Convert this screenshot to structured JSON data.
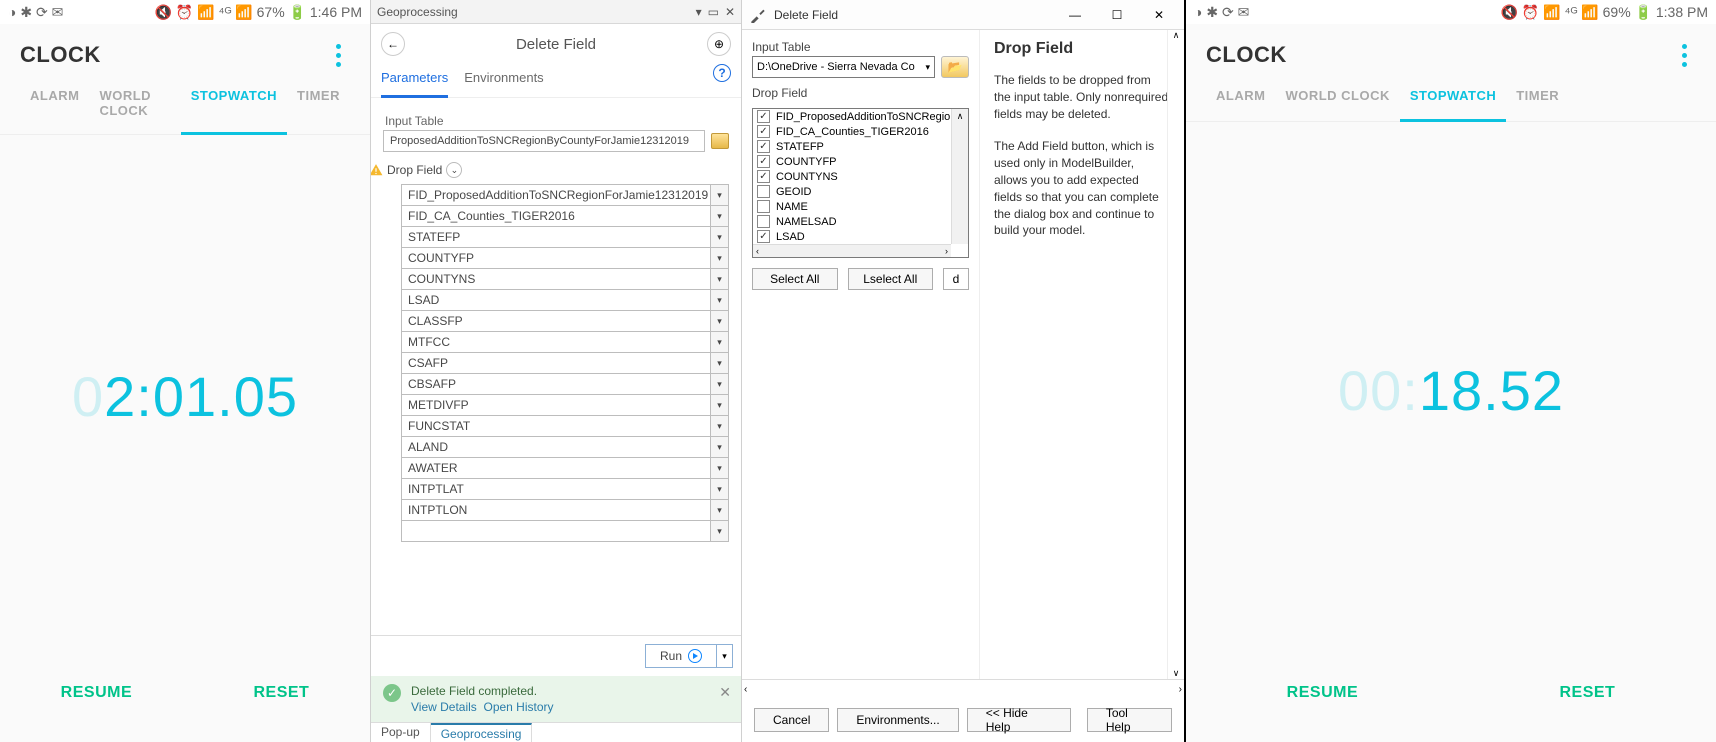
{
  "clockA": {
    "status": {
      "left_icons": "◑ ✱ ⟳ ✉",
      "right": "🔇 ⏰ 📶 ⁴ᴳ 📶 67% 🔋 1:46 PM"
    },
    "title": "CLOCK",
    "tabs": [
      "ALARM",
      "WORLD CLOCK",
      "STOPWATCH",
      "TIMER"
    ],
    "time_dim": "0",
    "time_main": "2:01.05",
    "resume": "RESUME",
    "reset": "RESET"
  },
  "gp": {
    "title": "Geoprocessing",
    "bar_title": "Delete Field",
    "tabs": {
      "params": "Parameters",
      "env": "Environments"
    },
    "input_label": "Input Table",
    "input_val": "ProposedAdditionToSNCRegionByCountyForJamie12312019",
    "drop_label": "Drop Field",
    "fields": [
      "FID_ProposedAdditionToSNCRegionForJamie12312019",
      "FID_CA_Counties_TIGER2016",
      "STATEFP",
      "COUNTYFP",
      "COUNTYNS",
      "LSAD",
      "CLASSFP",
      "MTFCC",
      "CSAFP",
      "CBSAFP",
      "METDIVFP",
      "FUNCSTAT",
      "ALAND",
      "AWATER",
      "INTPTLAT",
      "INTPTLON",
      ""
    ],
    "run": "Run",
    "status_msg": "Delete Field completed.",
    "view_details": "View Details",
    "open_history": "Open History",
    "foot": [
      "Pop-up",
      "Geoprocessing"
    ]
  },
  "am": {
    "title": "Delete Field",
    "input_label": "Input Table",
    "input_val": "D:\\OneDrive - Sierra Nevada Co",
    "drop_label": "Drop Field",
    "items": [
      {
        "ck": true,
        "t": "FID_ProposedAdditionToSNCRegionF"
      },
      {
        "ck": true,
        "t": "FID_CA_Counties_TIGER2016"
      },
      {
        "ck": true,
        "t": "STATEFP"
      },
      {
        "ck": true,
        "t": "COUNTYFP"
      },
      {
        "ck": true,
        "t": "COUNTYNS"
      },
      {
        "ck": false,
        "t": "GEOID"
      },
      {
        "ck": false,
        "t": "NAME"
      },
      {
        "ck": false,
        "t": "NAMELSAD"
      },
      {
        "ck": true,
        "t": "LSAD"
      }
    ],
    "select_all": "Select All",
    "unselect_all": "Lselect All",
    "add_field": "d",
    "help_h": "Drop Field",
    "help_p1": "The fields to be dropped from the input table. Only nonrequired fields may be deleted.",
    "help_p2": "The Add Field button, which is used only in ModelBuilder, allows you to add expected fields so that you can complete the dialog box and continue to build your model.",
    "foot": {
      "cancel": "Cancel",
      "env": "Environments...",
      "hide": "<< Hide Help",
      "toolhelp": "Tool Help"
    }
  },
  "clockB": {
    "status": {
      "left_icons": "◑ ✱ ⟳ ✉",
      "right": "🔇 ⏰ 📶 ⁴ᴳ 📶 69% 🔋 1:38 PM"
    },
    "title": "CLOCK",
    "tabs": [
      "ALARM",
      "WORLD CLOCK",
      "STOPWATCH",
      "TIMER"
    ],
    "time_dim": "00:",
    "time_main": "18.52",
    "resume": "RESUME",
    "reset": "RESET"
  }
}
